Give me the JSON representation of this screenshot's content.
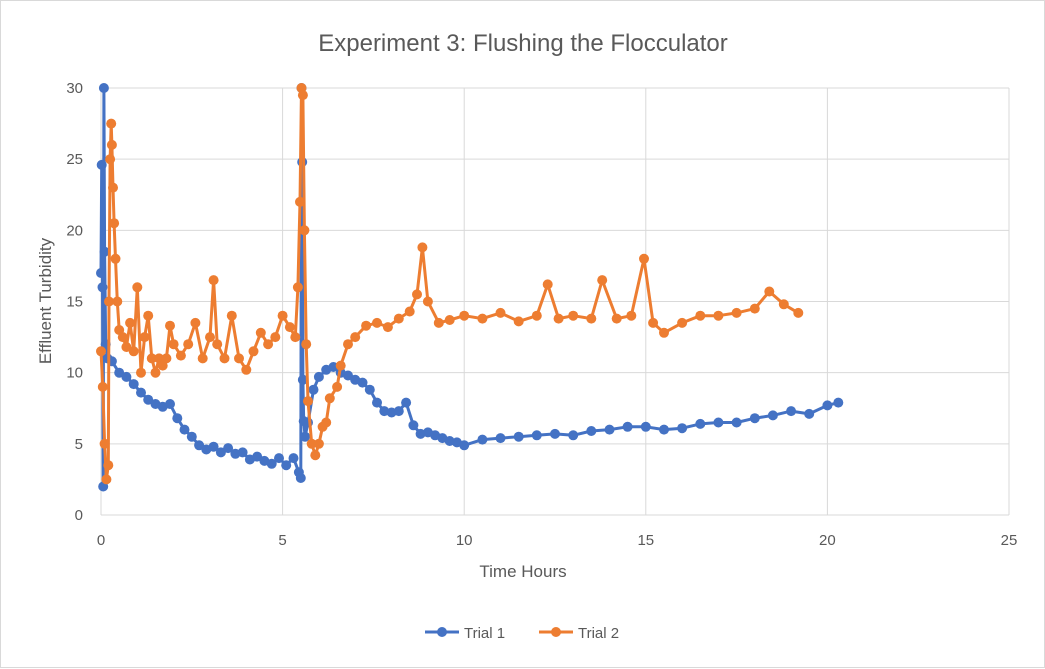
{
  "chart_data": {
    "type": "scatter",
    "title": "Experiment 3: Flushing the Flocculator",
    "xlabel": "Time Hours",
    "ylabel": "Effluent Turbidity",
    "xlim": [
      0,
      25
    ],
    "ylim": [
      0,
      30
    ],
    "x_ticks": [
      "0",
      "5",
      "10",
      "15",
      "20",
      "25"
    ],
    "y_ticks": [
      "0",
      "5",
      "10",
      "15",
      "20",
      "25",
      "30"
    ],
    "grid": true,
    "legend_position": "bottom",
    "series": [
      {
        "name": "Trial 1",
        "color": "#4472c4",
        "points": [
          [
            0.0,
            17.0
          ],
          [
            0.02,
            24.6
          ],
          [
            0.04,
            16.0
          ],
          [
            0.06,
            2.0
          ],
          [
            0.08,
            30.0
          ],
          [
            0.1,
            18.5
          ],
          [
            0.13,
            12.0
          ],
          [
            0.18,
            11.0
          ],
          [
            0.3,
            10.8
          ],
          [
            0.5,
            10.0
          ],
          [
            0.7,
            9.7
          ],
          [
            0.9,
            9.2
          ],
          [
            1.1,
            8.6
          ],
          [
            1.3,
            8.1
          ],
          [
            1.5,
            7.8
          ],
          [
            1.7,
            7.6
          ],
          [
            1.9,
            7.8
          ],
          [
            2.1,
            6.8
          ],
          [
            2.3,
            6.0
          ],
          [
            2.5,
            5.5
          ],
          [
            2.7,
            4.9
          ],
          [
            2.9,
            4.6
          ],
          [
            3.1,
            4.8
          ],
          [
            3.3,
            4.4
          ],
          [
            3.5,
            4.7
          ],
          [
            3.7,
            4.3
          ],
          [
            3.9,
            4.4
          ],
          [
            4.1,
            3.9
          ],
          [
            4.3,
            4.1
          ],
          [
            4.5,
            3.8
          ],
          [
            4.7,
            3.6
          ],
          [
            4.9,
            4.0
          ],
          [
            5.1,
            3.5
          ],
          [
            5.3,
            4.0
          ],
          [
            5.45,
            3.0
          ],
          [
            5.5,
            2.6
          ],
          [
            5.52,
            30.0
          ],
          [
            5.54,
            24.8
          ],
          [
            5.56,
            9.5
          ],
          [
            5.58,
            6.6
          ],
          [
            5.62,
            5.5
          ],
          [
            5.7,
            6.5
          ],
          [
            5.85,
            8.8
          ],
          [
            6.0,
            9.7
          ],
          [
            6.2,
            10.2
          ],
          [
            6.4,
            10.4
          ],
          [
            6.6,
            10.0
          ],
          [
            6.8,
            9.8
          ],
          [
            7.0,
            9.5
          ],
          [
            7.2,
            9.3
          ],
          [
            7.4,
            8.8
          ],
          [
            7.6,
            7.9
          ],
          [
            7.8,
            7.3
          ],
          [
            8.0,
            7.2
          ],
          [
            8.2,
            7.3
          ],
          [
            8.4,
            7.9
          ],
          [
            8.6,
            6.3
          ],
          [
            8.8,
            5.7
          ],
          [
            9.0,
            5.8
          ],
          [
            9.2,
            5.6
          ],
          [
            9.4,
            5.4
          ],
          [
            9.6,
            5.2
          ],
          [
            9.8,
            5.1
          ],
          [
            10.0,
            4.9
          ],
          [
            10.5,
            5.3
          ],
          [
            11.0,
            5.4
          ],
          [
            11.5,
            5.5
          ],
          [
            12.0,
            5.6
          ],
          [
            12.5,
            5.7
          ],
          [
            13.0,
            5.6
          ],
          [
            13.5,
            5.9
          ],
          [
            14.0,
            6.0
          ],
          [
            14.5,
            6.2
          ],
          [
            15.0,
            6.2
          ],
          [
            15.5,
            6.0
          ],
          [
            16.0,
            6.1
          ],
          [
            16.5,
            6.4
          ],
          [
            17.0,
            6.5
          ],
          [
            17.5,
            6.5
          ],
          [
            18.0,
            6.8
          ],
          [
            18.5,
            7.0
          ],
          [
            19.0,
            7.3
          ],
          [
            19.5,
            7.1
          ],
          [
            20.0,
            7.7
          ],
          [
            20.3,
            7.9
          ]
        ]
      },
      {
        "name": "Trial 2",
        "color": "#ed7d31",
        "points": [
          [
            0.0,
            11.5
          ],
          [
            0.05,
            9.0
          ],
          [
            0.1,
            5.0
          ],
          [
            0.15,
            2.5
          ],
          [
            0.2,
            3.5
          ],
          [
            0.22,
            15.0
          ],
          [
            0.25,
            25.0
          ],
          [
            0.28,
            27.5
          ],
          [
            0.3,
            26.0
          ],
          [
            0.33,
            23.0
          ],
          [
            0.36,
            20.5
          ],
          [
            0.4,
            18.0
          ],
          [
            0.45,
            15.0
          ],
          [
            0.5,
            13.0
          ],
          [
            0.6,
            12.5
          ],
          [
            0.7,
            11.8
          ],
          [
            0.8,
            13.5
          ],
          [
            0.9,
            11.5
          ],
          [
            1.0,
            16.0
          ],
          [
            1.1,
            10.0
          ],
          [
            1.2,
            12.5
          ],
          [
            1.3,
            14.0
          ],
          [
            1.4,
            11.0
          ],
          [
            1.5,
            10.0
          ],
          [
            1.6,
            11.0
          ],
          [
            1.7,
            10.5
          ],
          [
            1.8,
            11.0
          ],
          [
            1.9,
            13.3
          ],
          [
            2.0,
            12.0
          ],
          [
            2.2,
            11.2
          ],
          [
            2.4,
            12.0
          ],
          [
            2.6,
            13.5
          ],
          [
            2.8,
            11.0
          ],
          [
            3.0,
            12.5
          ],
          [
            3.1,
            16.5
          ],
          [
            3.2,
            12.0
          ],
          [
            3.4,
            11.0
          ],
          [
            3.6,
            14.0
          ],
          [
            3.8,
            11.0
          ],
          [
            4.0,
            10.2
          ],
          [
            4.2,
            11.5
          ],
          [
            4.4,
            12.8
          ],
          [
            4.6,
            12.0
          ],
          [
            4.8,
            12.5
          ],
          [
            5.0,
            14.0
          ],
          [
            5.2,
            13.2
          ],
          [
            5.35,
            12.5
          ],
          [
            5.42,
            16.0
          ],
          [
            5.48,
            22.0
          ],
          [
            5.52,
            30.0
          ],
          [
            5.56,
            29.5
          ],
          [
            5.6,
            20.0
          ],
          [
            5.65,
            12.0
          ],
          [
            5.7,
            8.0
          ],
          [
            5.8,
            5.0
          ],
          [
            5.9,
            4.2
          ],
          [
            6.0,
            5.0
          ],
          [
            6.1,
            6.2
          ],
          [
            6.2,
            6.5
          ],
          [
            6.3,
            8.2
          ],
          [
            6.5,
            9.0
          ],
          [
            6.6,
            10.5
          ],
          [
            6.8,
            12.0
          ],
          [
            7.0,
            12.5
          ],
          [
            7.3,
            13.3
          ],
          [
            7.6,
            13.5
          ],
          [
            7.9,
            13.2
          ],
          [
            8.2,
            13.8
          ],
          [
            8.5,
            14.3
          ],
          [
            8.7,
            15.5
          ],
          [
            8.85,
            18.8
          ],
          [
            9.0,
            15.0
          ],
          [
            9.3,
            13.5
          ],
          [
            9.6,
            13.7
          ],
          [
            10.0,
            14.0
          ],
          [
            10.5,
            13.8
          ],
          [
            11.0,
            14.2
          ],
          [
            11.5,
            13.6
          ],
          [
            12.0,
            14.0
          ],
          [
            12.3,
            16.2
          ],
          [
            12.6,
            13.8
          ],
          [
            13.0,
            14.0
          ],
          [
            13.5,
            13.8
          ],
          [
            13.8,
            16.5
          ],
          [
            14.2,
            13.8
          ],
          [
            14.6,
            14.0
          ],
          [
            14.95,
            18.0
          ],
          [
            15.2,
            13.5
          ],
          [
            15.5,
            12.8
          ],
          [
            16.0,
            13.5
          ],
          [
            16.5,
            14.0
          ],
          [
            17.0,
            14.0
          ],
          [
            17.5,
            14.2
          ],
          [
            18.0,
            14.5
          ],
          [
            18.4,
            15.7
          ],
          [
            18.8,
            14.8
          ],
          [
            19.2,
            14.2
          ]
        ]
      }
    ]
  }
}
